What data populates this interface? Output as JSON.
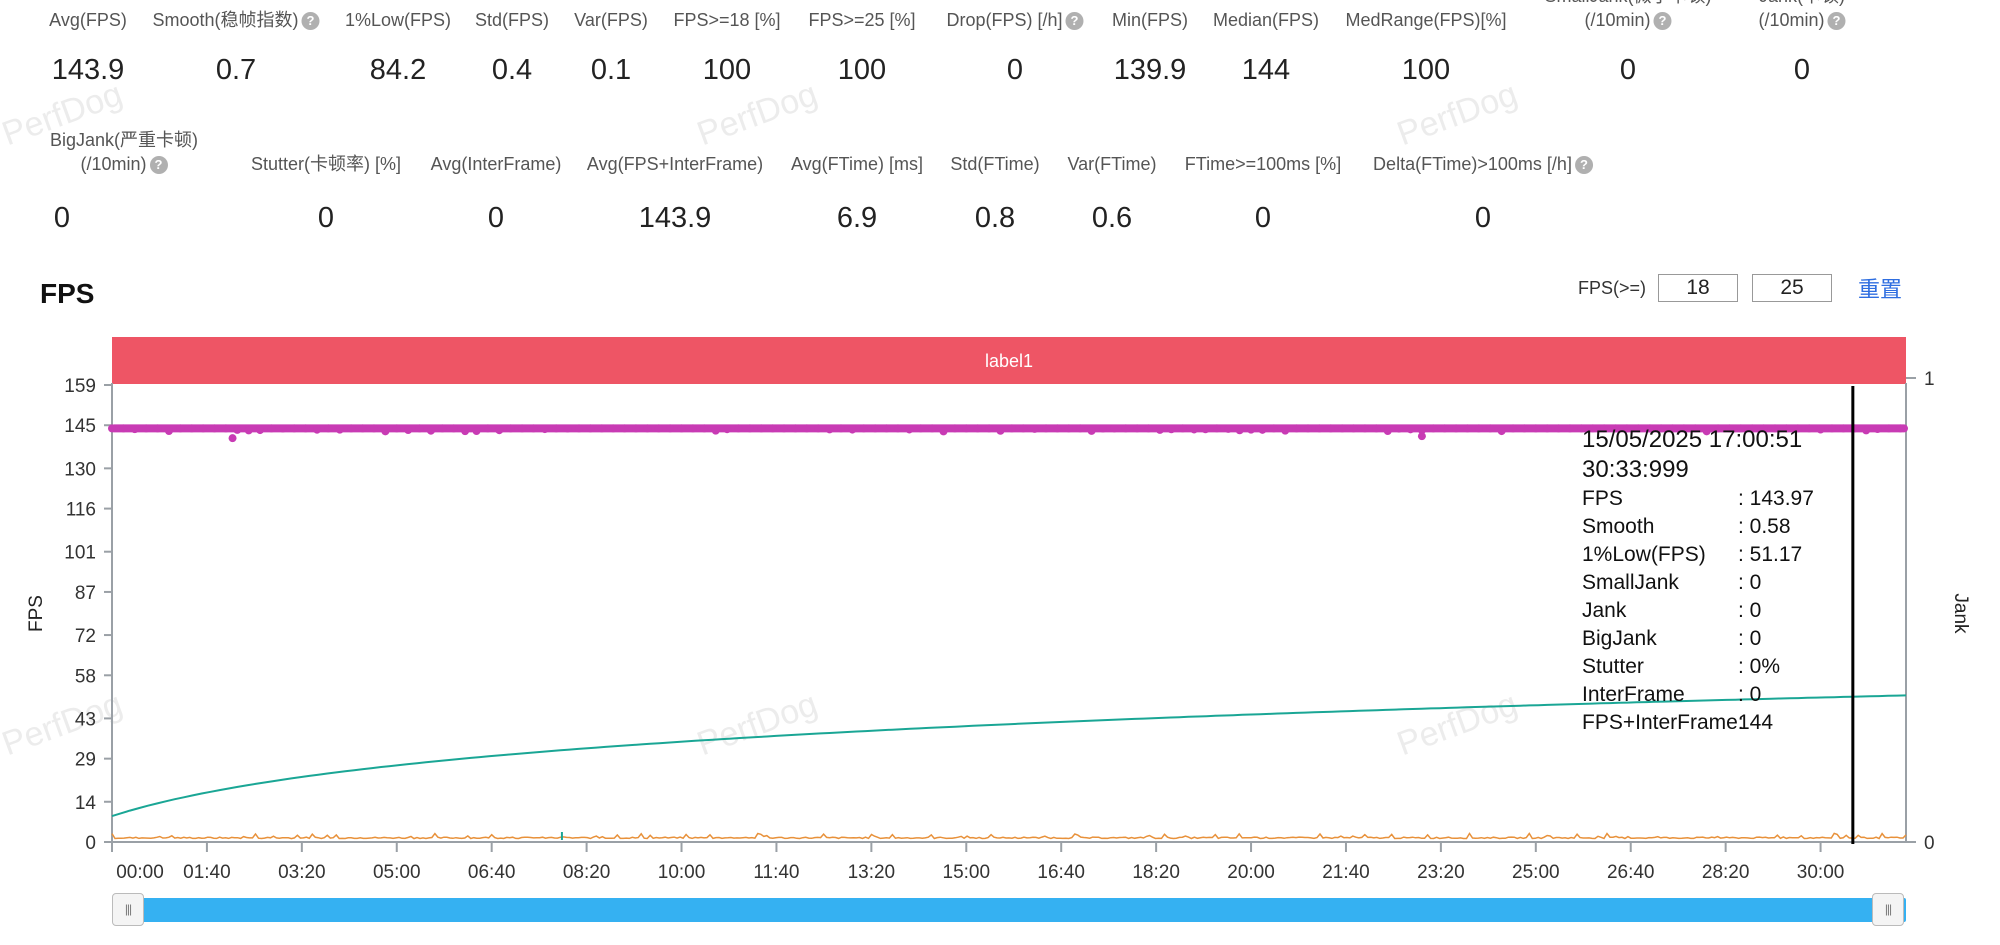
{
  "stats_row1": [
    {
      "label": "Avg(FPS)",
      "value": "143.9",
      "help": false
    },
    {
      "label": "Smooth(稳帧指数)",
      "value": "0.7",
      "help": true
    },
    {
      "label": "1%Low(FPS)",
      "value": "84.2",
      "help": false
    },
    {
      "label": "Std(FPS)",
      "value": "0.4",
      "help": false
    },
    {
      "label": "Var(FPS)",
      "value": "0.1",
      "help": false
    },
    {
      "label": "FPS>=18 [%]",
      "value": "100",
      "help": false
    },
    {
      "label": "FPS>=25 [%]",
      "value": "100",
      "help": false
    },
    {
      "label": "Drop(FPS) [/h]",
      "value": "0",
      "help": true
    },
    {
      "label": "Min(FPS)",
      "value": "139.9",
      "help": false
    },
    {
      "label": "Median(FPS)",
      "value": "144",
      "help": false
    },
    {
      "label": "MedRange(FPS)[%]",
      "value": "100",
      "help": false
    },
    {
      "label": "SmallJank(微小卡顿)",
      "label2": "(/10min)",
      "value": "0",
      "help": true
    },
    {
      "label": "Jank(卡顿)",
      "label2": "(/10min)",
      "value": "0",
      "help": true
    }
  ],
  "stats_row2": [
    {
      "label": "BigJank(严重卡顿)",
      "label2": "(/10min)",
      "value": "0",
      "help": true
    },
    {
      "label": "Stutter(卡顿率) [%]",
      "value": "0",
      "help": false
    },
    {
      "label": "Avg(InterFrame)",
      "value": "0",
      "help": false
    },
    {
      "label": "Avg(FPS+InterFrame)",
      "value": "143.9",
      "help": false
    },
    {
      "label": "Avg(FTime) [ms]",
      "value": "6.9",
      "help": false
    },
    {
      "label": "Std(FTime)",
      "value": "0.8",
      "help": false
    },
    {
      "label": "Var(FTime)",
      "value": "0.6",
      "help": false
    },
    {
      "label": "FTime>=100ms [%]",
      "value": "0",
      "help": false
    },
    {
      "label": "Delta(FTime)>100ms [/h]",
      "value": "0",
      "help": true
    }
  ],
  "watermark_text": "PerfDog",
  "help_glyph": "?",
  "section_title": "FPS",
  "fps_threshold": {
    "label": "FPS(>=)",
    "value1": "18",
    "value2": "25",
    "reset_label": "重置"
  },
  "scroll_handle_glyph": "|||",
  "chart_data": {
    "type": "line",
    "band_label": "label1",
    "band_color": "#ee5565",
    "xlabel": "",
    "ylabel": "FPS",
    "y2label": "Jank",
    "x_ticks": [
      "00:00",
      "01:40",
      "03:20",
      "05:00",
      "06:40",
      "08:20",
      "10:00",
      "11:40",
      "13:20",
      "15:00",
      "16:40",
      "18:20",
      "20:00",
      "21:40",
      "23:20",
      "25:00",
      "26:40",
      "28:20",
      "30:00"
    ],
    "y_ticks": [
      "0",
      "14",
      "29",
      "43",
      "58",
      "72",
      "87",
      "101",
      "116",
      "130",
      "145",
      "159"
    ],
    "y2_ticks": [
      "0",
      "1"
    ],
    "ylim": [
      0,
      159
    ],
    "y2lim": [
      0,
      1
    ],
    "xlim_seconds": [
      0,
      1890
    ],
    "series": [
      {
        "name": "FPS",
        "color": "#c83bb4",
        "mean": 143.9
      },
      {
        "color": "#1aa695"
      },
      {
        "color": "#e8913a"
      }
    ],
    "cursor_x_seconds": 1833.999,
    "tooltip": {
      "datetime": "15/05/2025 17:00:51",
      "elapsed": "30:33:999",
      "rows": [
        {
          "k": "FPS",
          "v": ": 143.97"
        },
        {
          "k": "Smooth",
          "v": ": 0.58"
        },
        {
          "k": "1%Low(FPS)",
          "v": ": 51.17"
        },
        {
          "k": "SmallJank",
          "v": ": 0"
        },
        {
          "k": "Jank",
          "v": ": 0"
        },
        {
          "k": "BigJank",
          "v": ": 0"
        },
        {
          "k": "Stutter",
          "v": ": 0%"
        },
        {
          "k": "InterFrame",
          "v": ": 0"
        },
        {
          "k": "FPS+InterFrame:",
          "v": "144"
        }
      ]
    }
  }
}
